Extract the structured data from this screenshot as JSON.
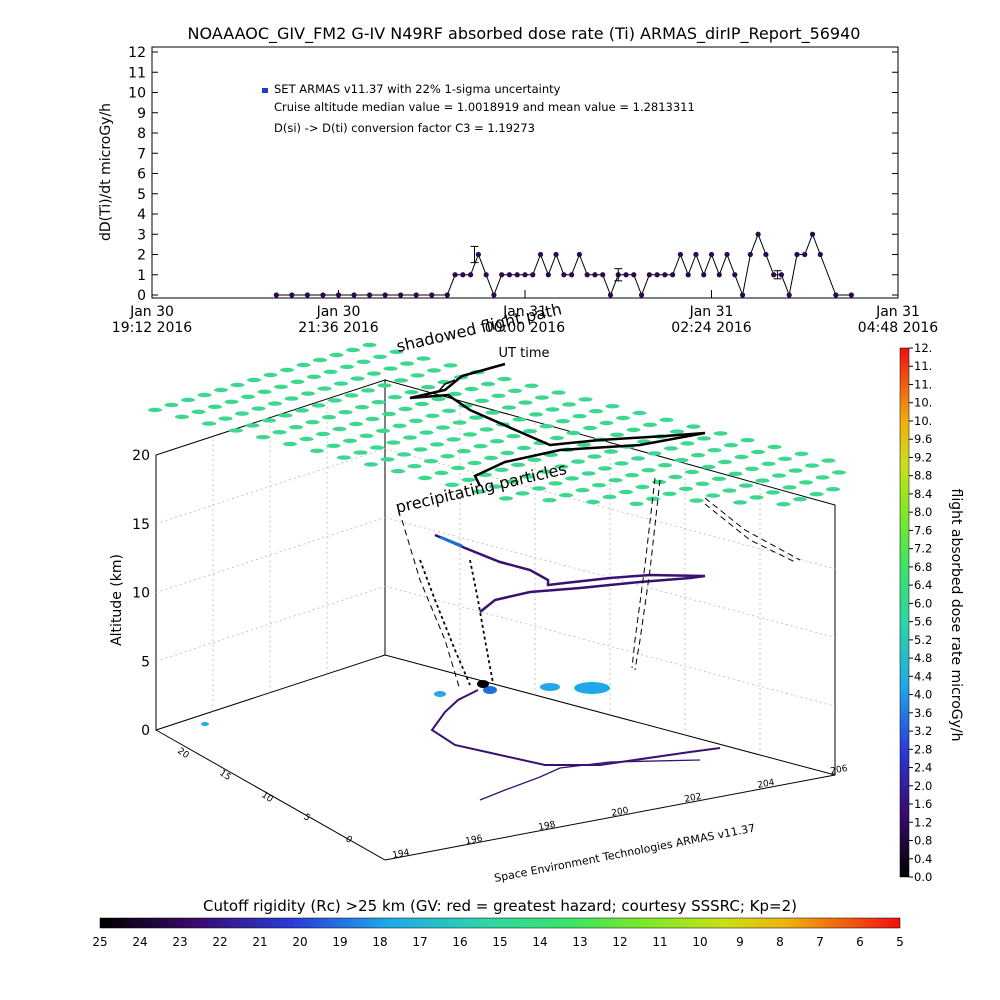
{
  "title": "NOAAAOC_GIV_FM2 G-IV    N49RF  absorbed dose rate (Ti) ARMAS_dirIP_Report_56940",
  "top_chart": {
    "ylabel": "dD(Ti)/dt microGy/h",
    "yticks": [
      "0",
      "1",
      "2",
      "3",
      "4",
      "5",
      "6",
      "7",
      "8",
      "9",
      "10",
      "11",
      "12"
    ],
    "xticks": [
      {
        "line1": "Jan 30",
        "line2": "19:12 2016"
      },
      {
        "line1": "Jan 30",
        "line2": "21:36 2016"
      },
      {
        "line1": "Jan 31",
        "line2": "00:00 2016"
      },
      {
        "line1": "Jan 31",
        "line2": "02:24 2016"
      },
      {
        "line1": "Jan 31",
        "line2": "04:48 2016"
      }
    ],
    "xlabel": "UT time",
    "legend": {
      "series": "SET ARMAS v11.37 with 22% 1-sigma uncertainty",
      "note1": "Cruise altitude median value = 1.0018919 and mean value = 1.2813311",
      "note2": "D(si) -> D(ti) conversion factor C3 = 1.19273"
    }
  },
  "chart_data": [
    {
      "type": "line",
      "title": "NOAAAOC_GIV_FM2 G-IV    N49RF  absorbed dose rate (Ti) ARMAS_dirIP_Report_56940",
      "xlabel": "UT time",
      "ylabel": "dD(Ti)/dt microGy/h",
      "ylim": [
        0,
        12
      ],
      "xlim_hours_since_jan30_1912": [
        0,
        9.6
      ],
      "series": [
        {
          "name": "SET ARMAS v11.37 with 22% 1-sigma uncertainty",
          "x": [
            1.6,
            1.8,
            2.0,
            2.2,
            2.4,
            2.6,
            2.8,
            3.0,
            3.2,
            3.4,
            3.6,
            3.8,
            3.9,
            4.0,
            4.1,
            4.2,
            4.3,
            4.4,
            4.5,
            4.6,
            4.7,
            4.8,
            4.9,
            5.0,
            5.1,
            5.2,
            5.3,
            5.4,
            5.5,
            5.6,
            5.7,
            5.8,
            5.9,
            6.0,
            6.1,
            6.2,
            6.3,
            6.4,
            6.5,
            6.6,
            6.7,
            6.8,
            6.9,
            7.0,
            7.1,
            7.2,
            7.3,
            7.4,
            7.5,
            7.6,
            7.7,
            7.8,
            7.9,
            8.0,
            8.1,
            8.2,
            8.3,
            8.4,
            8.5,
            8.6,
            8.8,
            9.0
          ],
          "y": [
            0,
            0,
            0,
            0,
            0,
            0,
            0,
            0,
            0,
            0,
            0,
            0,
            1,
            1,
            1,
            2,
            1,
            0,
            1,
            1,
            1,
            1,
            1,
            2,
            1,
            2,
            1,
            1,
            2,
            1,
            1,
            1,
            0,
            1,
            1,
            1,
            0,
            1,
            1,
            1,
            1,
            2,
            1,
            2,
            1,
            2,
            1,
            2,
            1,
            0,
            2,
            3,
            2,
            1,
            1,
            0,
            2,
            2,
            3,
            2,
            0,
            0
          ]
        }
      ],
      "legend_notes": [
        "Cruise altitude median value = 1.0018919 and mean value = 1.2813311",
        "D(si) -> D(ti) conversion factor C3 = 1.19273"
      ]
    },
    {
      "type": "scatter",
      "title": "",
      "zlabel": "Altitude (km)",
      "zticks": [
        0,
        5,
        10,
        15,
        20
      ],
      "x_ticks_longitude": [
        194,
        196,
        198,
        200,
        202,
        204,
        206
      ],
      "y_ticks_latitude": [
        0,
        5,
        10,
        15,
        20
      ],
      "annotations": [
        "shadowed flight path",
        "precipitating particles"
      ],
      "credit": "Space Environment Technologies ARMAS v11.37",
      "flight_path_surface": {
        "lon": [
          200.5,
          199.0,
          197.2,
          198.6,
          200.9,
          203.8,
          204.5,
          201.5,
          199.2,
          198.1,
          197.3,
          198.3,
          198.7,
          199.6,
          200.1
        ],
        "lat": [
          17.0,
          16.2,
          13.5,
          11.5,
          9.8,
          8.5,
          6.5,
          5.5,
          4.8,
          6.0,
          9.0,
          12.0,
          14.0,
          16.0,
          17.0
        ],
        "alt_km": [
          0,
          0.5,
          1.2,
          4.0,
          12.0,
          12.5,
          12.5,
          12.5,
          12.0,
          11.0,
          10.5,
          11.5,
          12.0,
          3.0,
          0
        ]
      }
    },
    {
      "type": "heatmap",
      "title": "Cutoff rigidity (Rc) >25 km (GV: red = greatest hazard; courtesy SSSRC; Kp=2)",
      "ticks": [
        "25",
        "24",
        "23",
        "22",
        "21",
        "20",
        "19",
        "18",
        "17",
        "16",
        "15",
        "14",
        "13",
        "12",
        "11",
        "10",
        "9",
        "8",
        "7",
        "6",
        "5"
      ]
    },
    {
      "type": "heatmap",
      "title": "flight absorbed dose rate microGy/h",
      "ticks": [
        "0.0",
        "0.4",
        "0.8",
        "1.2",
        "1.6",
        "2.0",
        "2.4",
        "2.8",
        "3.2",
        "3.6",
        "4.0",
        "4.4",
        "4.8",
        "5.2",
        "5.6",
        "6.0",
        "6.4",
        "6.8",
        "7.2",
        "7.6",
        "8.0",
        "8.4",
        "8.8",
        "9.2",
        "9.6",
        "10.",
        "10.",
        "11.",
        "11.",
        "12."
      ]
    }
  ],
  "three_d": {
    "zlabel": "Altitude (km)",
    "zticks": [
      "0",
      "5",
      "10",
      "15",
      "20"
    ],
    "lon_ticks": [
      "194",
      "196",
      "198",
      "200",
      "202",
      "204",
      "206"
    ],
    "lat_ticks": [
      "0",
      "5",
      "10",
      "15",
      "20"
    ],
    "annotation_shadow": "shadowed flight path",
    "annotation_precip": "precipitating particles",
    "credit": "Space Environment Technologies ARMAS v11.37"
  },
  "bottom_colorbar": {
    "title": "Cutoff rigidity (Rc) >25 km (GV: red = greatest hazard; courtesy SSSRC; Kp=2)",
    "ticks": [
      "25",
      "24",
      "23",
      "22",
      "21",
      "20",
      "19",
      "18",
      "17",
      "16",
      "15",
      "14",
      "13",
      "12",
      "11",
      "10",
      "9",
      "8",
      "7",
      "6",
      "5"
    ]
  },
  "right_colorbar": {
    "title": "flight absorbed dose rate microGy/h",
    "ticks": [
      "0.0",
      "0.4",
      "0.8",
      "1.2",
      "1.6",
      "2.0",
      "2.4",
      "2.8",
      "3.2",
      "3.6",
      "4.0",
      "4.4",
      "4.8",
      "5.2",
      "5.6",
      "6.0",
      "6.4",
      "6.8",
      "7.2",
      "7.6",
      "8.0",
      "8.4",
      "8.8",
      "9.2",
      "9.6",
      "10.",
      "10.",
      "11.",
      "11.",
      "12."
    ]
  },
  "colors": {
    "series_marker": "#2d0a4e",
    "legend_marker": "#1f3fbf",
    "precip_cell": "#3cd890",
    "flight_low": "#000000",
    "flight_mid": "#3a1070",
    "flight_high": "#1e6fd8",
    "cyan_blob": "#22a8e8"
  }
}
